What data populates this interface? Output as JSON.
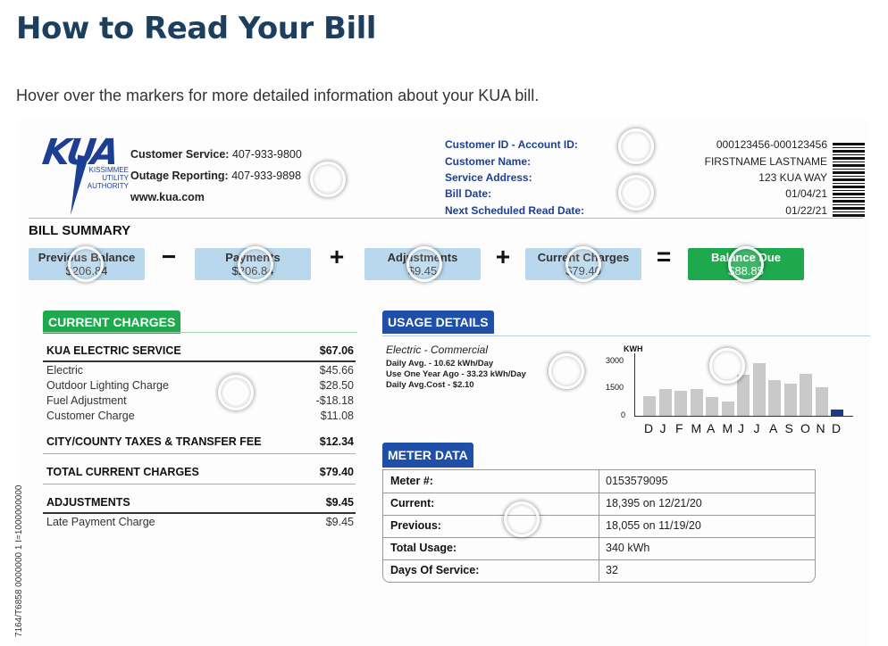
{
  "page": {
    "title": "How to Read Your Bill",
    "intro": "Hover over the markers for more detailed information about your KUA bill."
  },
  "bill": {
    "logo": {
      "letters": "KUA",
      "subtitle_lines": [
        "KISSIMMEE",
        "UTILITY",
        "AUTHORITY"
      ]
    },
    "contact": {
      "customer_service_label": "Customer Service:",
      "customer_service_value": "407-933-9800",
      "outage_label": "Outage Reporting:",
      "outage_value": "407-933-9898",
      "website": "www.kua.com"
    },
    "account": {
      "labels": [
        "Customer ID - Account ID:",
        "Customer Name:",
        "Service Address:",
        "Bill Date:",
        "Next Scheduled Read Date:"
      ],
      "values": [
        "000123456-000123456",
        "FIRSTNAME LASTNAME",
        "123 KUA WAY",
        "01/04/21",
        "01/22/21"
      ]
    },
    "summary": {
      "title": "BILL SUMMARY",
      "previous_label": "Previous Balance",
      "previous_value": "$206.84",
      "payments_label": "Payments",
      "payments_value": "$206.84",
      "adjustments_label": "Adjustments",
      "adjustments_value": "$9.45",
      "current_label": "Current Charges",
      "current_value": "$79.40",
      "balance_label": "Balance Due",
      "balance_value": "$88.85",
      "op_minus": "−",
      "op_plus": "+",
      "op_equals": "="
    },
    "current_charges": {
      "title": "CURRENT CHARGES",
      "electric_service_label": "KUA ELECTRIC SERVICE",
      "electric_service_value": "$67.06",
      "items": [
        {
          "label": "Electric",
          "value": "$45.66"
        },
        {
          "label": "Outdoor Lighting Charge",
          "value": "$28.50"
        },
        {
          "label": "Fuel Adjustment",
          "value": "-$18.18"
        },
        {
          "label": "Customer Charge",
          "value": "$11.08"
        }
      ],
      "taxes_label": "CITY/COUNTY TAXES & TRANSFER FEE",
      "taxes_value": "$12.34",
      "total_label": "TOTAL CURRENT CHARGES",
      "total_value": "$79.40",
      "adjustments_label": "ADJUSTMENTS",
      "adjustments_value": "$9.45",
      "late_label": "Late Payment Charge",
      "late_value": "$9.45"
    },
    "usage": {
      "title": "USAGE DETAILS",
      "type": "Electric - Commercial",
      "daily_avg": "Daily Avg. - 10.62 kWh/Day",
      "year_ago": "Use One Year Ago - 33.23 kWh/Day",
      "daily_cost": "Daily Avg.Cost - $2.10",
      "chart_unit": "KWH",
      "y_ticks": [
        "3000",
        "1500",
        "0"
      ]
    },
    "meter": {
      "title": "METER DATA",
      "rows": [
        {
          "label": "Meter #:",
          "value": "0153579095"
        },
        {
          "label": "Current:",
          "value": "18,395  on  12/21/20"
        },
        {
          "label": "Previous:",
          "value": "18,055  on  11/19/20"
        },
        {
          "label": "Total Usage:",
          "value": "340 kWh"
        },
        {
          "label": "Days Of Service:",
          "value": "32"
        }
      ]
    },
    "side_code": "7164/T6858 0000000 1 I=1000000000"
  },
  "chart_data": {
    "type": "bar",
    "title": "",
    "ylabel": "KWH",
    "xlabel": "",
    "ylim": [
      0,
      3000
    ],
    "categories": [
      "D",
      "J",
      "F",
      "M",
      "A",
      "M",
      "J",
      "J",
      "A",
      "S",
      "O",
      "N",
      "D"
    ],
    "values": [
      1100,
      1500,
      1400,
      1500,
      1050,
      800,
      2300,
      2950,
      2000,
      1800,
      2350,
      1600,
      340
    ],
    "highlight_index": 12,
    "colors": {
      "bars": "#c9c9c9",
      "current": "#1f3a8a"
    },
    "grid": false
  }
}
